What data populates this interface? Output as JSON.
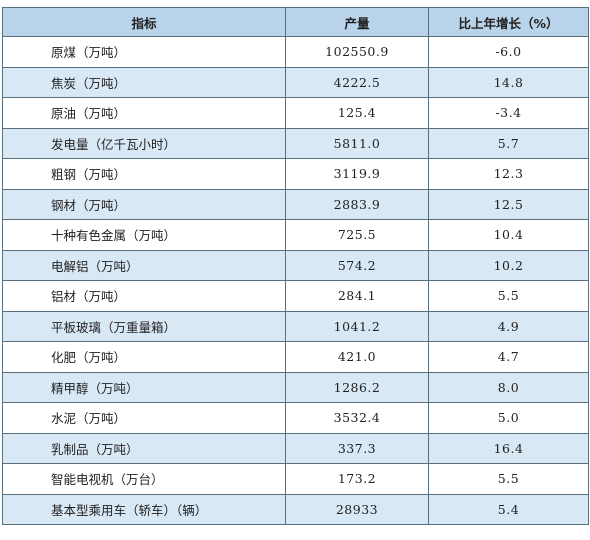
{
  "header": {
    "col_indicator": "指标",
    "col_output": "产量",
    "col_growth": "比上年增长（%）"
  },
  "rows": [
    {
      "name": "原煤（万吨）",
      "output": "102550.9",
      "growth": "-6.0"
    },
    {
      "name": "焦炭（万吨）",
      "output": "4222.5",
      "growth": "14.8"
    },
    {
      "name": "原油（万吨）",
      "output": "125.4",
      "growth": "-3.4"
    },
    {
      "name": "发电量（亿千瓦小时）",
      "output": "5811.0",
      "growth": "5.7"
    },
    {
      "name": "粗钢（万吨）",
      "output": "3119.9",
      "growth": "12.3"
    },
    {
      "name": "钢材（万吨）",
      "output": "2883.9",
      "growth": "12.5"
    },
    {
      "name": "十种有色金属（万吨）",
      "output": "725.5",
      "growth": "10.4"
    },
    {
      "name": "电解铝（万吨）",
      "output": "574.2",
      "growth": "10.2"
    },
    {
      "name": "铝材（万吨）",
      "output": "284.1",
      "growth": "5.5"
    },
    {
      "name": "平板玻璃（万重量箱）",
      "output": "1041.2",
      "growth": "4.9"
    },
    {
      "name": "化肥（万吨）",
      "output": "421.0",
      "growth": "4.7"
    },
    {
      "name": "精甲醇（万吨）",
      "output": "1286.2",
      "growth": "8.0"
    },
    {
      "name": "水泥（万吨）",
      "output": "3532.4",
      "growth": "5.0"
    },
    {
      "name": "乳制品（万吨）",
      "output": "337.3",
      "growth": "16.4"
    },
    {
      "name": "智能电视机（万台）",
      "output": "173.2",
      "growth": "5.5"
    },
    {
      "name": "基本型乘用车（轿车）（辆）",
      "output": "28933",
      "growth": "5.4"
    }
  ]
}
